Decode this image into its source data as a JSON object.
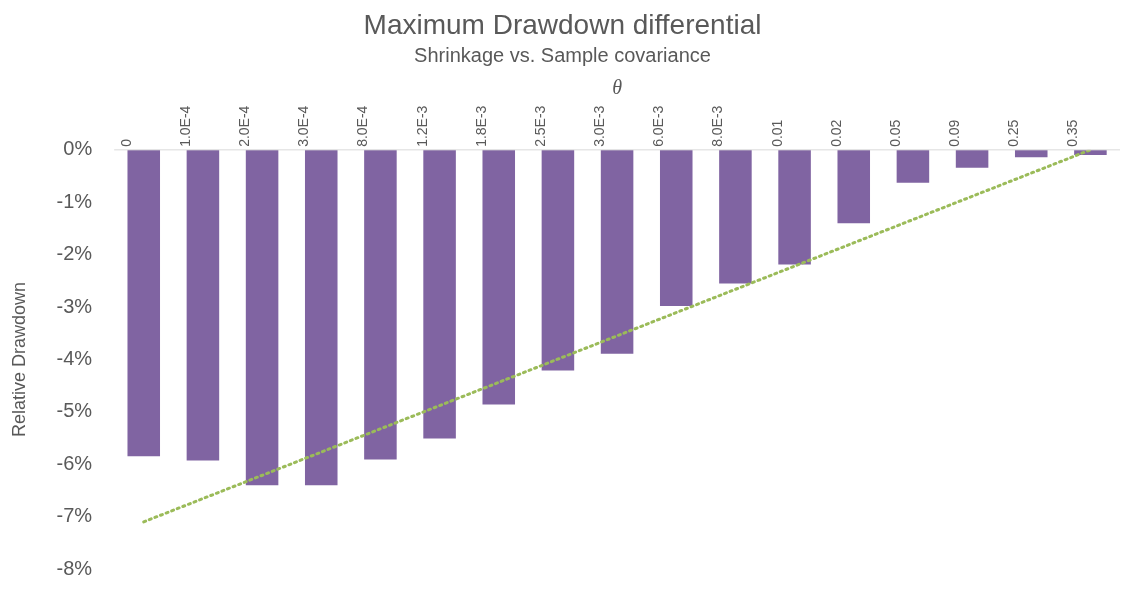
{
  "chart_data": {
    "type": "bar",
    "title": "Maximum Drawdown differential",
    "subtitle": "Shrinkage vs. Sample covariance",
    "xlabel": "θ",
    "ylabel": "Relative Drawdown",
    "categories": [
      "0",
      "1.0E-4",
      "2.0E-4",
      "3.0E-4",
      "8.0E-4",
      "1.2E-3",
      "1.8E-3",
      "2.5E-3",
      "3.0E-3",
      "6.0E-3",
      "8.0E-3",
      "0.01",
      "0.02",
      "0.05",
      "0.09",
      "0.25",
      "0.35"
    ],
    "series": [
      {
        "color": "#8064a2",
        "values": [
          -5.85,
          -5.93,
          -6.4,
          -6.4,
          -5.91,
          -5.51,
          -4.86,
          -4.21,
          -3.89,
          -2.98,
          -2.55,
          -2.19,
          -1.4,
          -0.63,
          -0.34,
          -0.14,
          -0.1
        ]
      },
      {
        "type": "line",
        "color": "#9bbb59",
        "line_style": "dotted",
        "marker": "none",
        "x": [
          "0",
          "0.35"
        ],
        "values": [
          -7.1,
          0
        ]
      }
    ],
    "ylim": [
      -8,
      0
    ],
    "yticks": [
      {
        "value": 0,
        "label": "0%"
      },
      {
        "value": -1,
        "label": "-1%"
      },
      {
        "value": -2,
        "label": "-2%"
      },
      {
        "value": -3,
        "label": "-3%"
      },
      {
        "value": -4,
        "label": "-4%"
      },
      {
        "value": -5,
        "label": "-5%"
      },
      {
        "value": -6,
        "label": "-6%"
      },
      {
        "value": -7,
        "label": "-7%"
      },
      {
        "value": -8,
        "label": "-8%"
      }
    ],
    "grid": false,
    "legend": false
  }
}
